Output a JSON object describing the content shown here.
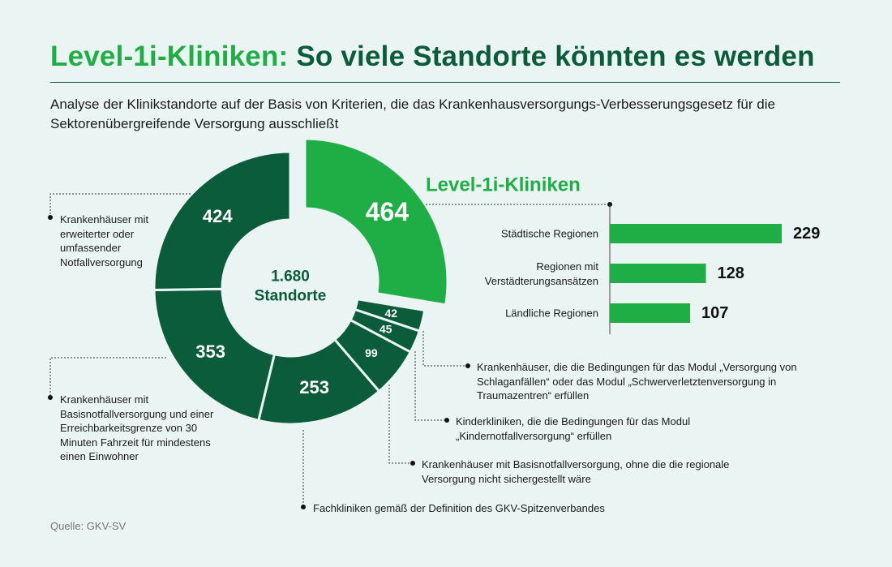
{
  "header": {
    "title_part1": "Level-1i-Kliniken:",
    "title_part2": "So viele Standorte könnten es werden",
    "subtitle": "Analyse der Klinikstandorte auf der Basis von Kriterien, die das Krankenhausversorgungs-Verbesserungsgesetz für die Sektorenübergreifende Versorgung ausschließt"
  },
  "footer": {
    "source": "Quelle: GKV-SV"
  },
  "colors": {
    "bright_green": "#1fae45",
    "dark_green": "#0b5c3a",
    "background": "#eaf4f2"
  },
  "chart_data": [
    {
      "type": "pie",
      "style": "donut",
      "center_value": "1.680",
      "center_label": "Standorte",
      "total": 1680,
      "slices": [
        {
          "value": 464,
          "label": "464",
          "color": "#1fae45",
          "exploded": true,
          "description": ""
        },
        {
          "value": 42,
          "label": "42",
          "color": "#0b5c3a",
          "description": "Krankenhäuser, die die Bedingungen für das Modul „Versorgung von Schlaganfällen“ oder das Modul „Schwerverletztenversorgung in Traumazentren“ erfüllen"
        },
        {
          "value": 45,
          "label": "45",
          "color": "#0b5c3a",
          "description": "Kinderkliniken, die die Bedingungen für das Modul „Kindernotfallversorgung“ erfüllen"
        },
        {
          "value": 99,
          "label": "99",
          "color": "#0b5c3a",
          "description": "Krankenhäuser mit Basisnotfallversorgung, ohne die die regionale Versorgung nicht sichergestellt wäre"
        },
        {
          "value": 253,
          "label": "253",
          "color": "#0b5c3a",
          "description": "Fachkliniken gemäß der Definition des GKV-Spitzenverbandes"
        },
        {
          "value": 353,
          "label": "353",
          "color": "#0b5c3a",
          "description": "Krankenhäuser mit Basisnotfallversorgung und einer Erreichbarkeitsgrenze von 30 Minuten Fahrzeit für mindestens einen Einwohner"
        },
        {
          "value": 424,
          "label": "424",
          "color": "#0b5c3a",
          "description": "Krankenhäuser mit erweiterter oder umfassender Notfallversorgung"
        }
      ]
    },
    {
      "type": "bar",
      "orientation": "horizontal",
      "title": "Level-1i-Kliniken",
      "categories": [
        "Städtische Regionen",
        "Regionen mit Verstädterungsansätzen",
        "Ländliche Regionen"
      ],
      "values": [
        229,
        128,
        107
      ],
      "color": "#1fae45"
    }
  ]
}
